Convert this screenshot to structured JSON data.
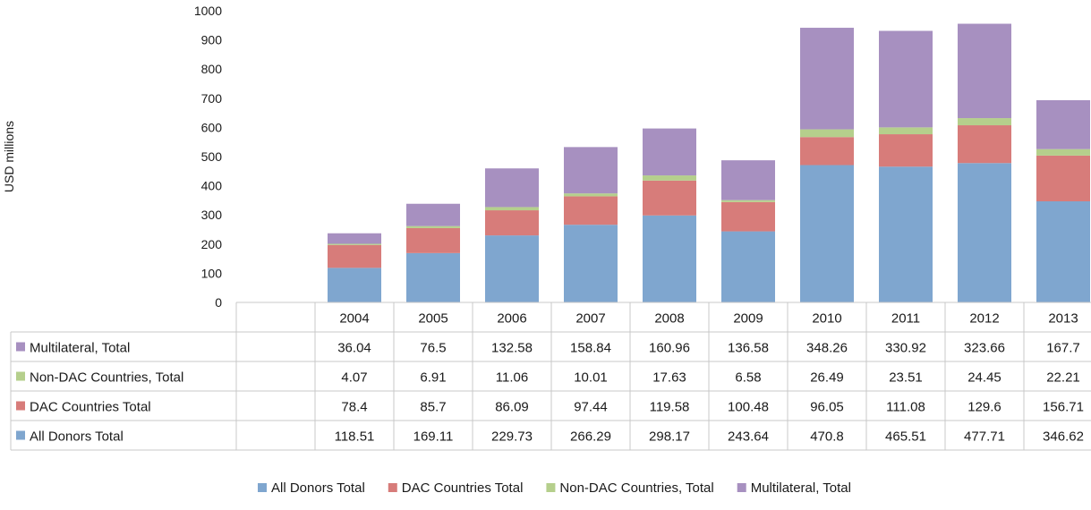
{
  "chart_data": {
    "type": "bar",
    "stacked": true,
    "categories": [
      "2004",
      "2005",
      "2006",
      "2007",
      "2008",
      "2009",
      "2010",
      "2011",
      "2012",
      "2013"
    ],
    "series": [
      {
        "name": "All Donors Total",
        "color": "#7fa6cf",
        "values": [
          118.51,
          169.11,
          229.73,
          266.29,
          298.17,
          243.64,
          470.8,
          465.51,
          477.71,
          346.62
        ]
      },
      {
        "name": "DAC Countries Total",
        "color": "#d77c7a",
        "values": [
          78.4,
          85.7,
          86.09,
          97.44,
          119.58,
          100.48,
          96.05,
          111.08,
          129.6,
          156.71
        ]
      },
      {
        "name": "Non-DAC Countries, Total",
        "color": "#b5cf8c",
        "values": [
          4.07,
          6.91,
          11.06,
          10.01,
          17.63,
          6.58,
          26.49,
          23.51,
          24.45,
          22.21
        ]
      },
      {
        "name": "Multilateral, Total",
        "color": "#a790c0",
        "values": [
          36.04,
          76.5,
          132.58,
          158.84,
          160.96,
          136.58,
          348.26,
          330.92,
          323.66,
          167.7
        ]
      }
    ],
    "table_rows": [
      {
        "name": "Multilateral, Total",
        "color": "#a790c0",
        "values": [
          "36.04",
          "76.5",
          "132.58",
          "158.84",
          "160.96",
          "136.58",
          "348.26",
          "330.92",
          "323.66",
          "167.7"
        ]
      },
      {
        "name": "Non-DAC Countries, Total",
        "color": "#b5cf8c",
        "values": [
          "4.07",
          "6.91",
          "11.06",
          "10.01",
          "17.63",
          "6.58",
          "26.49",
          "23.51",
          "24.45",
          "22.21"
        ]
      },
      {
        "name": "DAC Countries Total",
        "color": "#d77c7a",
        "values": [
          "78.4",
          "85.7",
          "86.09",
          "97.44",
          "119.58",
          "100.48",
          "96.05",
          "111.08",
          "129.6",
          "156.71"
        ]
      },
      {
        "name": "All Donors Total",
        "color": "#7fa6cf",
        "values": [
          "118.51",
          "169.11",
          "229.73",
          "266.29",
          "298.17",
          "243.64",
          "470.8",
          "465.51",
          "477.71",
          "346.62"
        ]
      }
    ],
    "title": "",
    "xlabel": "",
    "ylabel": "USD millions",
    "ylim": [
      0,
      1000
    ],
    "yticks": [
      "0",
      "100",
      "200",
      "300",
      "400",
      "500",
      "600",
      "700",
      "800",
      "900",
      "1000"
    ],
    "grid": false,
    "data_table": true,
    "legend_position": "bottom"
  }
}
